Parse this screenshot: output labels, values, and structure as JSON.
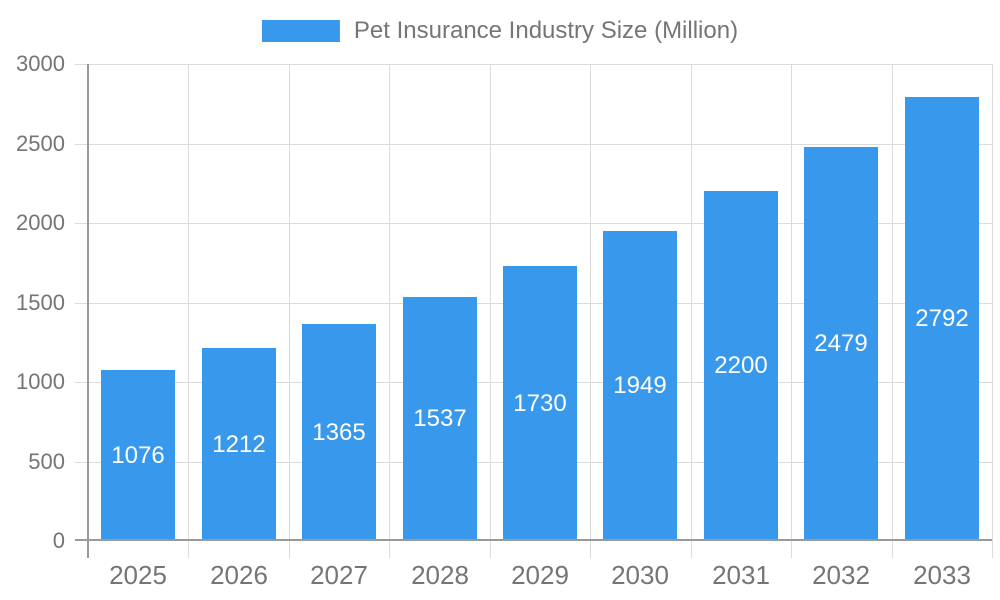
{
  "chart_data": {
    "type": "bar",
    "title": "Pet Insurance Industry Size (Million)",
    "legend": {
      "label": "Pet Insurance Industry Size (Million)",
      "position": "top-center"
    },
    "categories": [
      "2025",
      "2026",
      "2027",
      "2028",
      "2029",
      "2030",
      "2031",
      "2032",
      "2033"
    ],
    "series": [
      {
        "name": "Pet Insurance Industry Size (Million)",
        "values": [
          1076,
          1212,
          1365,
          1537,
          1730,
          1949,
          2200,
          2479,
          2792
        ]
      }
    ],
    "xlabel": "",
    "ylabel": "",
    "ylim": [
      0,
      3000
    ],
    "yticks": [
      0,
      500,
      1000,
      1500,
      2000,
      2500,
      3000
    ],
    "grid": "horizontal value gridlines and vertical category-boundary gridlines, light gray",
    "value_labels": "white numbers centered inside each bar",
    "colors": {
      "bar": "#3898ec",
      "grid": "#dbdbdb",
      "axis": "#999999",
      "text": "#757575",
      "value_text": "#ffffff",
      "background": "#ffffff"
    }
  }
}
